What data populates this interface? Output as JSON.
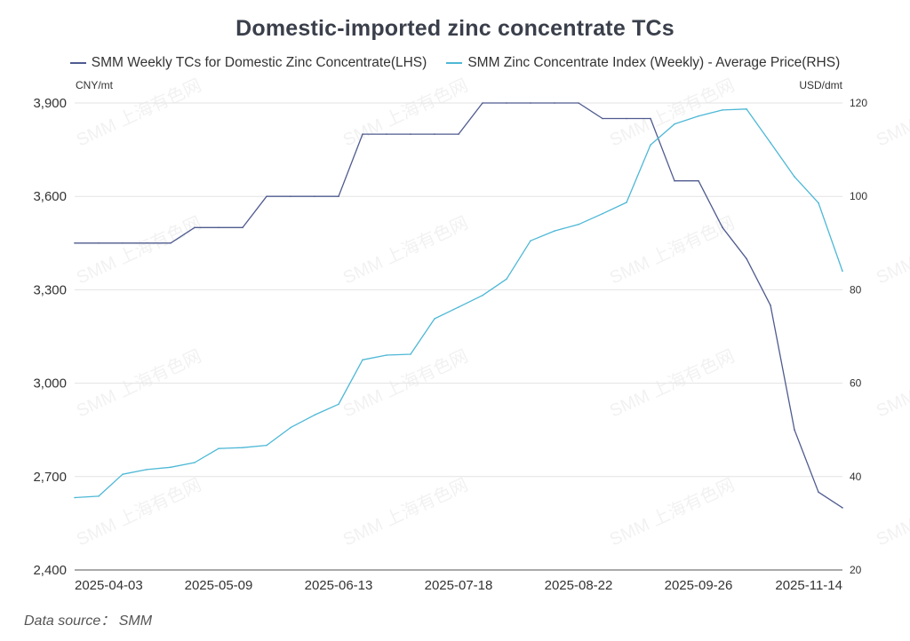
{
  "chart_data": {
    "type": "line",
    "title": "Domestic-imported zinc concentrate TCs",
    "left_unit": "CNY/mt",
    "right_unit": "USD/dmt",
    "x": [
      "2025-03-27",
      "2025-04-03",
      "2025-04-10",
      "2025-04-17",
      "2025-04-24",
      "2025-05-02",
      "2025-05-09",
      "2025-05-16",
      "2025-05-23",
      "2025-05-30",
      "2025-06-06",
      "2025-06-13",
      "2025-06-20",
      "2025-06-27",
      "2025-07-04",
      "2025-07-11",
      "2025-07-18",
      "2025-07-25",
      "2025-08-01",
      "2025-08-08",
      "2025-08-15",
      "2025-08-22",
      "2025-08-29",
      "2025-09-05",
      "2025-09-12",
      "2025-09-19",
      "2025-09-26",
      "2025-10-10",
      "2025-10-17",
      "2025-10-24",
      "2025-10-31",
      "2025-11-07",
      "2025-11-14"
    ],
    "x_tick_labels": [
      "2025-04-03",
      "2025-05-09",
      "2025-06-13",
      "2025-07-18",
      "2025-08-22",
      "2025-09-26",
      "2025-11-14"
    ],
    "y_left": {
      "min": 2400,
      "max": 3900,
      "ticks": [
        "2,400",
        "2,700",
        "3,000",
        "3,300",
        "3,600",
        "3,900"
      ]
    },
    "y_right": {
      "min": 20,
      "max": 120,
      "ticks": [
        "20",
        "40",
        "60",
        "80",
        "100",
        "120"
      ]
    },
    "series": [
      {
        "name": "SMM Weekly TCs for Domestic Zinc Concentrate(LHS)",
        "axis": "left",
        "color": "#4f5b8f",
        "values": [
          3450,
          3450,
          3450,
          3450,
          3450,
          3500,
          3500,
          3500,
          3600,
          3600,
          3600,
          3600,
          3800,
          3800,
          3800,
          3800,
          3800,
          3900,
          3900,
          3900,
          3900,
          3900,
          3850,
          3850,
          3850,
          3650,
          3650,
          3500,
          3400,
          3250,
          2850,
          2650,
          2600
        ]
      },
      {
        "name": "SMM Zinc Concentrate Index (Weekly) - Average Price(RHS)",
        "axis": "right",
        "color": "#4db8d6",
        "values": [
          35.5,
          35.8,
          40.5,
          41.5,
          42,
          43,
          46,
          46.2,
          46.7,
          50.5,
          53.2,
          55.5,
          65,
          66,
          66.2,
          73.8,
          76.3,
          78.8,
          82.3,
          90.5,
          92.6,
          94,
          96.3,
          98.7,
          111,
          115.5,
          117.2,
          118.5,
          118.7,
          111.5,
          104.2,
          98.6,
          84
        ]
      }
    ],
    "grid": true,
    "watermark": "SMM 上海有色网",
    "source": "Data source： SMM"
  }
}
